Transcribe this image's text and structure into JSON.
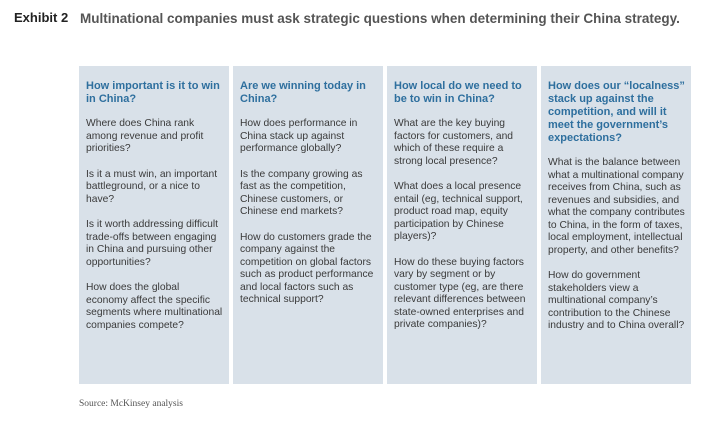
{
  "exhibit": {
    "label": "Exhibit 2",
    "title": "Multinational companies must ask strategic questions when determining their China strategy."
  },
  "columns": [
    {
      "heading": "How important is it to win in China?",
      "questions": [
        "Where does China rank among revenue and profit priorities?",
        "Is it a must win, an important battleground, or a nice to have?",
        "Is it worth addressing difficult trade-offs between engaging in China and pursuing other opportunities?",
        "How does the global economy affect the specific segments where multinational companies compete?"
      ]
    },
    {
      "heading": "Are we winning today in China?",
      "questions": [
        "How does performance in China stack up against performance globally?",
        "Is the company growing as fast as the competition, Chinese customers, or Chinese end markets?",
        "How do customers grade the company against the competition on global factors such as product performance and local factors such as technical support?"
      ]
    },
    {
      "heading": "How local do we need to be to win in China?",
      "questions": [
        "What are the key buying factors for customers, and which of these require a strong local presence?",
        "What does a local presence entail (eg, technical support, product road map, equity participation by Chinese players)?",
        "How do these buying factors vary by segment or by customer type (eg, are there relevant differences between state-owned enterprises and private companies)?"
      ]
    },
    {
      "heading": "How does our “localness” stack up against the competition, and will it meet the government’s expectations?",
      "questions": [
        "What is the balance between what a multinational company receives from China, such as revenues and subsidies, and what the company contributes to China, in the form of taxes, local employment, intellectual property, and other benefits?",
        "How do government stakeholders view a multinational company’s contribution to the Chinese industry and to China overall?"
      ]
    }
  ],
  "source": "Source: McKinsey analysis"
}
